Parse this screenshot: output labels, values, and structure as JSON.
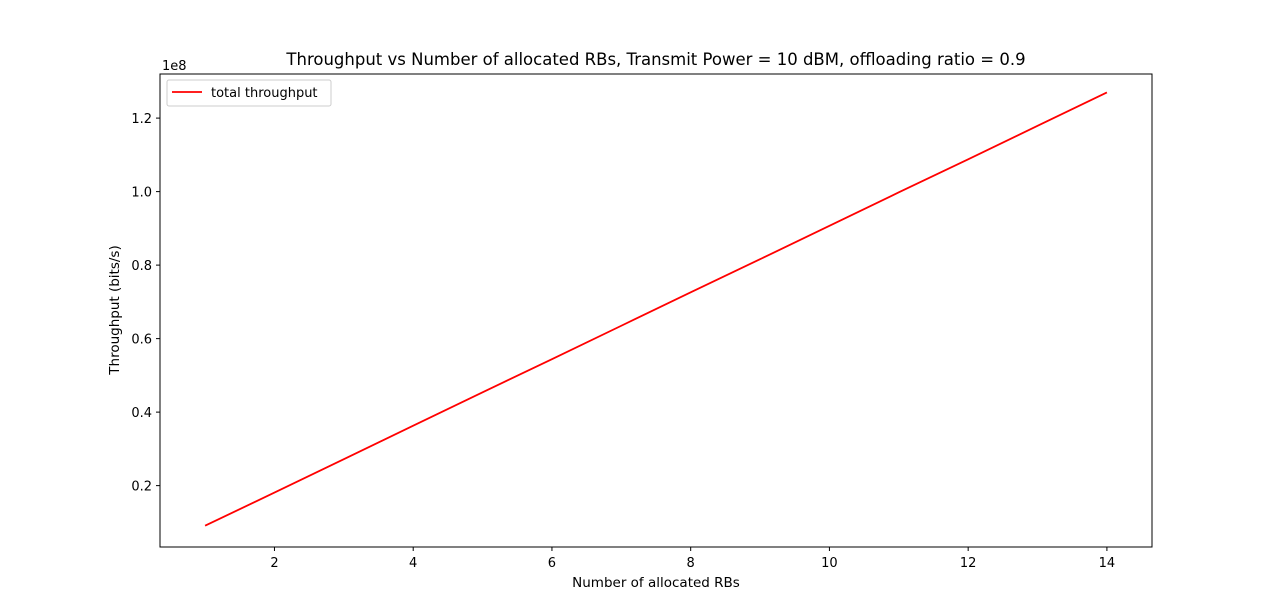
{
  "chart_data": {
    "type": "line",
    "title": "Throughput vs Number of allocated RBs, Transmit Power = 10 dBM, offloading ratio = 0.9",
    "xlabel": "Number of allocated RBs",
    "ylabel": "Throughput (bits/s)",
    "y_offset_label": "1e8",
    "xlim": [
      0.35,
      14.65
    ],
    "ylim": [
      3300000,
      132000000
    ],
    "x_ticks": [
      2,
      4,
      6,
      8,
      10,
      12,
      14
    ],
    "x_tick_labels": [
      "2",
      "4",
      "6",
      "8",
      "10",
      "12",
      "14"
    ],
    "y_ticks": [
      20000000,
      40000000,
      60000000,
      80000000,
      100000000,
      120000000
    ],
    "y_tick_labels": [
      "0.2",
      "0.4",
      "0.6",
      "0.8",
      "1.0",
      "1.2"
    ],
    "grid": false,
    "legend_position": "upper-left",
    "series": [
      {
        "name": "total throughput",
        "color": "#ff0000",
        "x": [
          1,
          2,
          3,
          4,
          5,
          6,
          7,
          8,
          9,
          10,
          11,
          12,
          13,
          14
        ],
        "y": [
          9100000,
          18100000,
          27200000,
          36300000,
          45400000,
          54400000,
          63500000,
          72600000,
          81600000,
          90700000,
          99800000,
          108800000,
          117900000,
          127000000
        ]
      }
    ]
  }
}
